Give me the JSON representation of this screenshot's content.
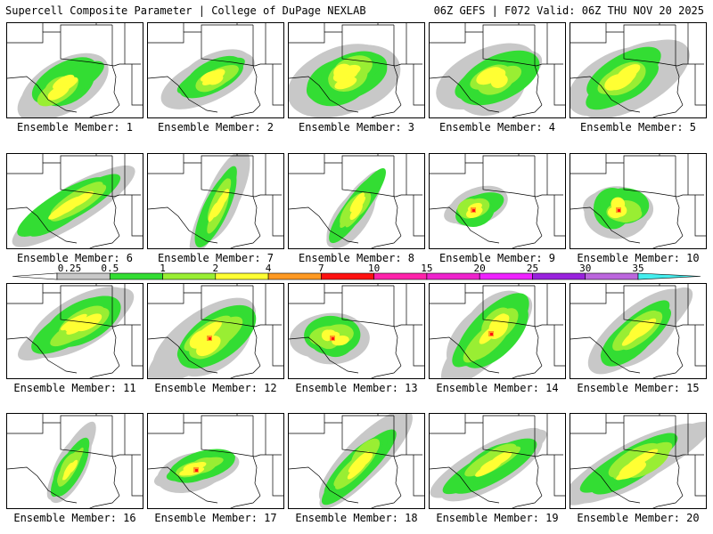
{
  "header": {
    "left_title": "Supercell Composite Parameter | College of DuPage NEXLAB",
    "right_title": "06Z GEFS | F072 Valid: 06Z THU NOV 20 2025"
  },
  "label_prefix": "Ensemble Member: ",
  "members": [
    {
      "id": "1",
      "label": "Ensemble Member: 1"
    },
    {
      "id": "2",
      "label": "Ensemble Member: 2"
    },
    {
      "id": "3",
      "label": "Ensemble Member: 3"
    },
    {
      "id": "4",
      "label": "Ensemble Member: 4"
    },
    {
      "id": "5",
      "label": "Ensemble Member: 5"
    },
    {
      "id": "6",
      "label": "Ensemble Member: 6"
    },
    {
      "id": "7",
      "label": "Ensemble Member: 7"
    },
    {
      "id": "8",
      "label": "Ensemble Member: 8"
    },
    {
      "id": "9",
      "label": "Ensemble Member: 9"
    },
    {
      "id": "10",
      "label": "Ensemble Member: 10"
    },
    {
      "id": "11",
      "label": "Ensemble Member: 11"
    },
    {
      "id": "12",
      "label": "Ensemble Member: 12"
    },
    {
      "id": "13",
      "label": "Ensemble Member: 13"
    },
    {
      "id": "14",
      "label": "Ensemble Member: 14"
    },
    {
      "id": "15",
      "label": "Ensemble Member: 15"
    },
    {
      "id": "16",
      "label": "Ensemble Member: 16"
    },
    {
      "id": "17",
      "label": "Ensemble Member: 17"
    },
    {
      "id": "18",
      "label": "Ensemble Member: 18"
    },
    {
      "id": "19",
      "label": "Ensemble Member: 19"
    },
    {
      "id": "20",
      "label": "Ensemble Member: 20"
    }
  ],
  "color_scale": {
    "thresholds": [
      "0.25",
      "0.5",
      "1",
      "2",
      "4",
      "7",
      "10",
      "15",
      "20",
      "25",
      "30",
      "35"
    ],
    "colors": [
      "#c8c8c8",
      "#33dd33",
      "#99ee33",
      "#ffff33",
      "#ff9922",
      "#ff1111",
      "#ff22aa",
      "#ee22cc",
      "#ee22ff",
      "#9922dd",
      "#bb66dd",
      "#44eeee"
    ]
  }
}
